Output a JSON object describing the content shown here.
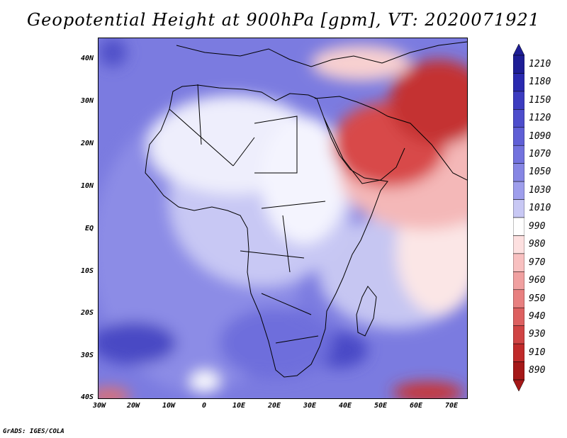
{
  "title": "Geopotential Height at 900hPa [gpm], VT: 2020071921",
  "credit": "GrADS: IGES/COLA",
  "map": {
    "region": "Africa and Middle East",
    "lat_labels": [
      "40N",
      "30N",
      "20N",
      "10N",
      "EQ",
      "10S",
      "20S",
      "30S",
      "40S"
    ],
    "lon_labels": [
      "30W",
      "20W",
      "10W",
      "0",
      "10E",
      "20E",
      "30E",
      "40E",
      "50E",
      "60E",
      "70E"
    ]
  },
  "colorbar": {
    "levels": [
      "1210",
      "1180",
      "1150",
      "1120",
      "1090",
      "1070",
      "1050",
      "1030",
      "1010",
      "990",
      "980",
      "970",
      "960",
      "950",
      "940",
      "930",
      "910",
      "890"
    ],
    "colors": [
      "#1e1e96",
      "#2a2ab0",
      "#3c3cc0",
      "#4d4dcc",
      "#5f5fd6",
      "#7272de",
      "#8686e4",
      "#9e9eec",
      "#c8c8f4",
      "#ffffff",
      "#fde0e0",
      "#f8c0c0",
      "#f0a0a0",
      "#e88080",
      "#dd6060",
      "#d04444",
      "#c02a2a",
      "#a51818"
    ]
  }
}
